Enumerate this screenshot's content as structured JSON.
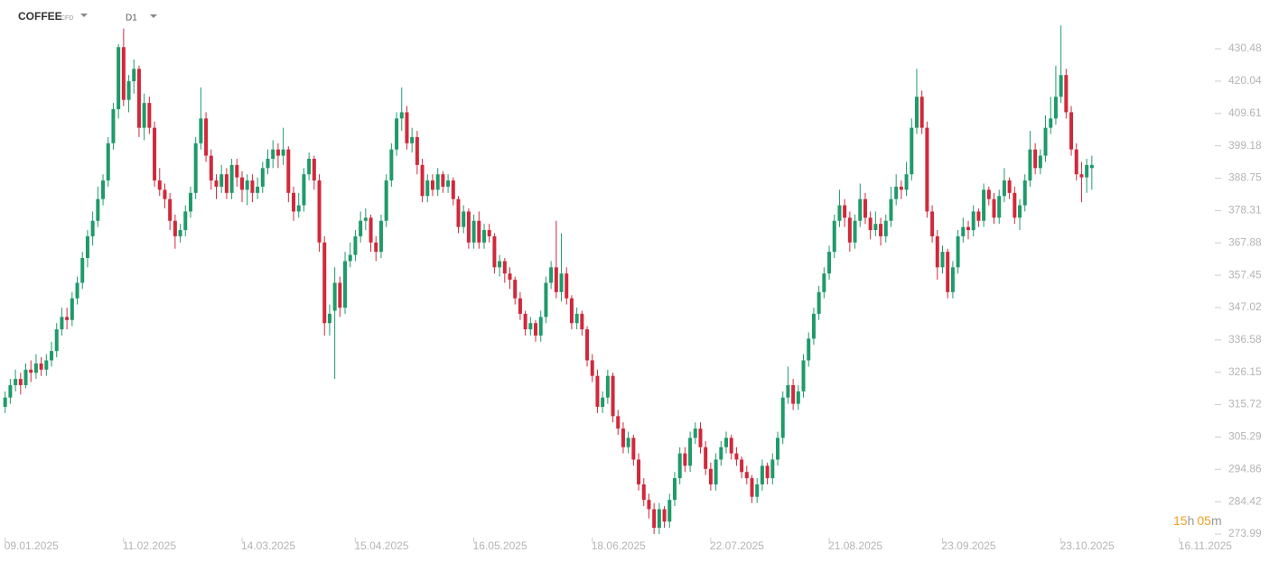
{
  "header": {
    "symbol": "COFFEE",
    "market": "CFD",
    "timeframe": "D1"
  },
  "countdown": {
    "hours": "15",
    "hours_unit": "h",
    "minutes": "05",
    "minutes_unit": "m"
  },
  "chart_data": {
    "type": "candlestick",
    "up_color": "#1f9a6b",
    "down_color": "#d0293b",
    "ylim": [
      273.99,
      446.2
    ],
    "yticks": [
      273.99,
      284.42,
      294.86,
      305.29,
      315.72,
      326.15,
      336.58,
      347.02,
      357.45,
      367.88,
      378.31,
      388.75,
      399.18,
      409.61,
      420.04,
      430.48
    ],
    "xlim": [
      -1,
      234
    ],
    "xticks": [
      {
        "value": 0,
        "label": "09.01.2025"
      },
      {
        "value": 23,
        "label": "11.02.2025"
      },
      {
        "value": 46,
        "label": "14.03.2025"
      },
      {
        "value": 68,
        "label": "15.04.2025"
      },
      {
        "value": 91,
        "label": "16.05.2025"
      },
      {
        "value": 114,
        "label": "18.06.2025"
      },
      {
        "value": 137,
        "label": "22.07.2025"
      },
      {
        "value": 160,
        "label": "21.08.2025"
      },
      {
        "value": 182,
        "label": "23.09.2025"
      },
      {
        "value": 205,
        "label": "23.10.2025"
      },
      {
        "value": 228,
        "label": "16.11.2025"
      }
    ],
    "grid": false,
    "candles": [
      [
        315,
        320,
        313,
        318
      ],
      [
        318,
        324,
        316,
        322
      ],
      [
        322,
        327,
        320,
        324
      ],
      [
        324,
        326,
        319,
        322
      ],
      [
        322,
        329,
        321,
        327
      ],
      [
        327,
        330,
        323,
        326
      ],
      [
        326,
        332,
        324,
        329
      ],
      [
        329,
        331,
        325,
        327
      ],
      [
        327,
        332,
        325,
        330
      ],
      [
        330,
        336,
        328,
        333
      ],
      [
        333,
        342,
        331,
        340
      ],
      [
        340,
        347,
        338,
        344
      ],
      [
        344,
        347,
        340,
        343
      ],
      [
        343,
        352,
        341,
        350
      ],
      [
        350,
        357,
        348,
        355
      ],
      [
        355,
        365,
        353,
        363
      ],
      [
        363,
        372,
        360,
        370
      ],
      [
        370,
        378,
        367,
        375
      ],
      [
        375,
        386,
        373,
        382
      ],
      [
        382,
        390,
        380,
        388
      ],
      [
        388,
        402,
        386,
        400
      ],
      [
        400,
        413,
        398,
        411
      ],
      [
        411,
        432,
        408,
        431
      ],
      [
        431,
        437,
        412,
        414
      ],
      [
        414,
        422,
        410,
        420
      ],
      [
        420,
        427,
        416,
        424
      ],
      [
        424,
        425,
        402,
        405
      ],
      [
        405,
        416,
        401,
        413
      ],
      [
        413,
        415,
        403,
        405
      ],
      [
        405,
        407,
        386,
        388
      ],
      [
        388,
        392,
        383,
        385
      ],
      [
        385,
        387,
        379,
        382
      ],
      [
        382,
        384,
        372,
        375
      ],
      [
        375,
        377,
        366,
        370
      ],
      [
        370,
        374,
        368,
        372
      ],
      [
        372,
        380,
        370,
        378
      ],
      [
        378,
        386,
        376,
        384
      ],
      [
        384,
        402,
        382,
        400
      ],
      [
        400,
        418,
        398,
        408
      ],
      [
        408,
        410,
        394,
        396
      ],
      [
        396,
        398,
        385,
        388
      ],
      [
        388,
        390,
        382,
        386
      ],
      [
        386,
        393,
        384,
        390
      ],
      [
        390,
        392,
        382,
        384
      ],
      [
        384,
        395,
        382,
        393
      ],
      [
        393,
        395,
        386,
        389
      ],
      [
        389,
        391,
        381,
        385
      ],
      [
        385,
        390,
        380,
        388
      ],
      [
        388,
        390,
        381,
        384
      ],
      [
        384,
        389,
        382,
        386
      ],
      [
        386,
        394,
        384,
        392
      ],
      [
        392,
        398,
        390,
        395
      ],
      [
        395,
        401,
        392,
        398
      ],
      [
        398,
        400,
        392,
        396
      ],
      [
        396,
        405,
        393,
        398
      ],
      [
        398,
        399,
        381,
        384
      ],
      [
        384,
        386,
        375,
        378
      ],
      [
        378,
        384,
        376,
        380
      ],
      [
        380,
        392,
        378,
        390
      ],
      [
        390,
        397,
        388,
        395
      ],
      [
        395,
        396,
        385,
        388
      ],
      [
        388,
        390,
        365,
        368
      ],
      [
        368,
        370,
        338,
        342
      ],
      [
        342,
        348,
        338,
        345
      ],
      [
        346,
        360,
        324,
        355
      ],
      [
        355,
        357,
        344,
        347
      ],
      [
        347,
        365,
        345,
        362
      ],
      [
        362,
        368,
        360,
        364
      ],
      [
        364,
        372,
        362,
        370
      ],
      [
        370,
        378,
        368,
        375
      ],
      [
        375,
        379,
        372,
        376
      ],
      [
        376,
        377,
        365,
        368
      ],
      [
        368,
        370,
        362,
        365
      ],
      [
        365,
        377,
        363,
        375
      ],
      [
        375,
        390,
        373,
        388
      ],
      [
        388,
        400,
        386,
        398
      ],
      [
        398,
        410,
        396,
        408
      ],
      [
        408,
        418,
        404,
        410
      ],
      [
        410,
        412,
        398,
        400
      ],
      [
        400,
        405,
        397,
        402
      ],
      [
        402,
        404,
        390,
        393
      ],
      [
        393,
        395,
        381,
        383
      ],
      [
        383,
        390,
        381,
        388
      ],
      [
        388,
        390,
        383,
        385
      ],
      [
        385,
        392,
        383,
        390
      ],
      [
        390,
        391,
        384,
        386
      ],
      [
        386,
        390,
        384,
        388
      ],
      [
        388,
        389,
        380,
        382
      ],
      [
        382,
        383,
        371,
        373
      ],
      [
        373,
        380,
        371,
        378
      ],
      [
        378,
        379,
        366,
        368
      ],
      [
        368,
        377,
        366,
        375
      ],
      [
        375,
        378,
        366,
        368
      ],
      [
        368,
        374,
        366,
        372
      ],
      [
        372,
        374,
        368,
        370
      ],
      [
        370,
        371,
        358,
        360
      ],
      [
        360,
        364,
        357,
        362
      ],
      [
        362,
        363,
        355,
        358
      ],
      [
        358,
        360,
        353,
        356
      ],
      [
        356,
        357,
        348,
        350
      ],
      [
        350,
        352,
        343,
        345
      ],
      [
        345,
        346,
        338,
        340
      ],
      [
        340,
        344,
        338,
        342
      ],
      [
        342,
        343,
        336,
        338
      ],
      [
        338,
        346,
        336,
        344
      ],
      [
        344,
        357,
        342,
        355
      ],
      [
        355,
        362,
        353,
        360
      ],
      [
        360,
        375,
        350,
        352
      ],
      [
        352,
        371,
        349,
        358
      ],
      [
        358,
        360,
        348,
        350
      ],
      [
        350,
        351,
        340,
        342
      ],
      [
        342,
        347,
        340,
        345
      ],
      [
        345,
        346,
        338,
        340
      ],
      [
        340,
        341,
        328,
        330
      ],
      [
        330,
        332,
        323,
        325
      ],
      [
        325,
        327,
        313,
        315
      ],
      [
        315,
        320,
        313,
        318
      ],
      [
        318,
        327,
        316,
        325
      ],
      [
        325,
        326,
        310,
        312
      ],
      [
        312,
        314,
        306,
        308
      ],
      [
        308,
        310,
        300,
        302
      ],
      [
        302,
        307,
        300,
        305
      ],
      [
        305,
        306,
        296,
        298
      ],
      [
        298,
        300,
        288,
        290
      ],
      [
        290,
        292,
        283,
        285
      ],
      [
        285,
        287,
        279,
        282
      ],
      [
        282,
        284,
        274,
        276
      ],
      [
        276,
        284,
        274,
        282
      ],
      [
        282,
        283,
        276,
        278
      ],
      [
        278,
        287,
        276,
        285
      ],
      [
        285,
        294,
        283,
        292
      ],
      [
        292,
        302,
        290,
        300
      ],
      [
        300,
        302,
        294,
        296
      ],
      [
        296,
        307,
        294,
        305
      ],
      [
        305,
        310,
        303,
        308
      ],
      [
        308,
        310,
        300,
        302
      ],
      [
        302,
        304,
        293,
        295
      ],
      [
        295,
        297,
        288,
        290
      ],
      [
        290,
        300,
        288,
        298
      ],
      [
        298,
        304,
        296,
        302
      ],
      [
        302,
        307,
        300,
        305
      ],
      [
        305,
        306,
        298,
        300
      ],
      [
        300,
        302,
        296,
        298
      ],
      [
        298,
        299,
        292,
        294
      ],
      [
        294,
        296,
        290,
        292
      ],
      [
        292,
        293,
        284,
        286
      ],
      [
        286,
        292,
        284,
        290
      ],
      [
        290,
        298,
        288,
        296
      ],
      [
        296,
        297,
        290,
        292
      ],
      [
        292,
        300,
        290,
        298
      ],
      [
        298,
        307,
        296,
        305
      ],
      [
        305,
        320,
        303,
        318
      ],
      [
        318,
        328,
        316,
        322
      ],
      [
        322,
        324,
        314,
        316
      ],
      [
        316,
        322,
        314,
        320
      ],
      [
        320,
        332,
        318,
        330
      ],
      [
        330,
        339,
        328,
        337
      ],
      [
        337,
        347,
        335,
        345
      ],
      [
        345,
        354,
        343,
        352
      ],
      [
        352,
        360,
        350,
        358
      ],
      [
        358,
        367,
        356,
        365
      ],
      [
        365,
        377,
        363,
        375
      ],
      [
        375,
        385,
        373,
        380
      ],
      [
        380,
        382,
        373,
        376
      ],
      [
        376,
        378,
        365,
        368
      ],
      [
        368,
        377,
        366,
        375
      ],
      [
        375,
        387,
        373,
        382
      ],
      [
        382,
        384,
        374,
        376
      ],
      [
        376,
        378,
        369,
        372
      ],
      [
        372,
        378,
        370,
        374
      ],
      [
        374,
        376,
        367,
        370
      ],
      [
        370,
        377,
        368,
        375
      ],
      [
        375,
        386,
        373,
        382
      ],
      [
        382,
        390,
        380,
        386
      ],
      [
        386,
        388,
        382,
        385
      ],
      [
        385,
        394,
        383,
        390
      ],
      [
        390,
        408,
        388,
        405
      ],
      [
        405,
        424,
        403,
        415
      ],
      [
        415,
        417,
        403,
        405
      ],
      [
        405,
        407,
        376,
        378
      ],
      [
        378,
        380,
        368,
        370
      ],
      [
        370,
        372,
        356,
        360
      ],
      [
        360,
        367,
        358,
        365
      ],
      [
        365,
        366,
        350,
        352
      ],
      [
        352,
        362,
        350,
        360
      ],
      [
        360,
        372,
        358,
        370
      ],
      [
        370,
        376,
        368,
        373
      ],
      [
        373,
        375,
        369,
        372
      ],
      [
        372,
        380,
        370,
        378
      ],
      [
        378,
        379,
        373,
        375
      ],
      [
        375,
        387,
        373,
        385
      ],
      [
        385,
        386,
        380,
        382
      ],
      [
        382,
        384,
        374,
        376
      ],
      [
        376,
        385,
        374,
        383
      ],
      [
        383,
        392,
        381,
        388
      ],
      [
        388,
        389,
        382,
        384
      ],
      [
        384,
        386,
        374,
        376
      ],
      [
        376,
        382,
        372,
        380
      ],
      [
        380,
        390,
        378,
        388
      ],
      [
        388,
        404,
        386,
        398
      ],
      [
        398,
        400,
        390,
        392
      ],
      [
        392,
        398,
        390,
        396
      ],
      [
        396,
        409,
        394,
        405
      ],
      [
        405,
        415,
        403,
        408
      ],
      [
        408,
        425,
        406,
        415
      ],
      [
        415,
        438,
        413,
        422
      ],
      [
        422,
        424,
        408,
        410
      ],
      [
        410,
        412,
        396,
        398
      ],
      [
        398,
        400,
        388,
        390
      ],
      [
        390,
        394,
        381,
        389
      ],
      [
        389,
        395,
        384,
        393
      ],
      [
        392,
        396,
        385,
        393
      ]
    ]
  }
}
